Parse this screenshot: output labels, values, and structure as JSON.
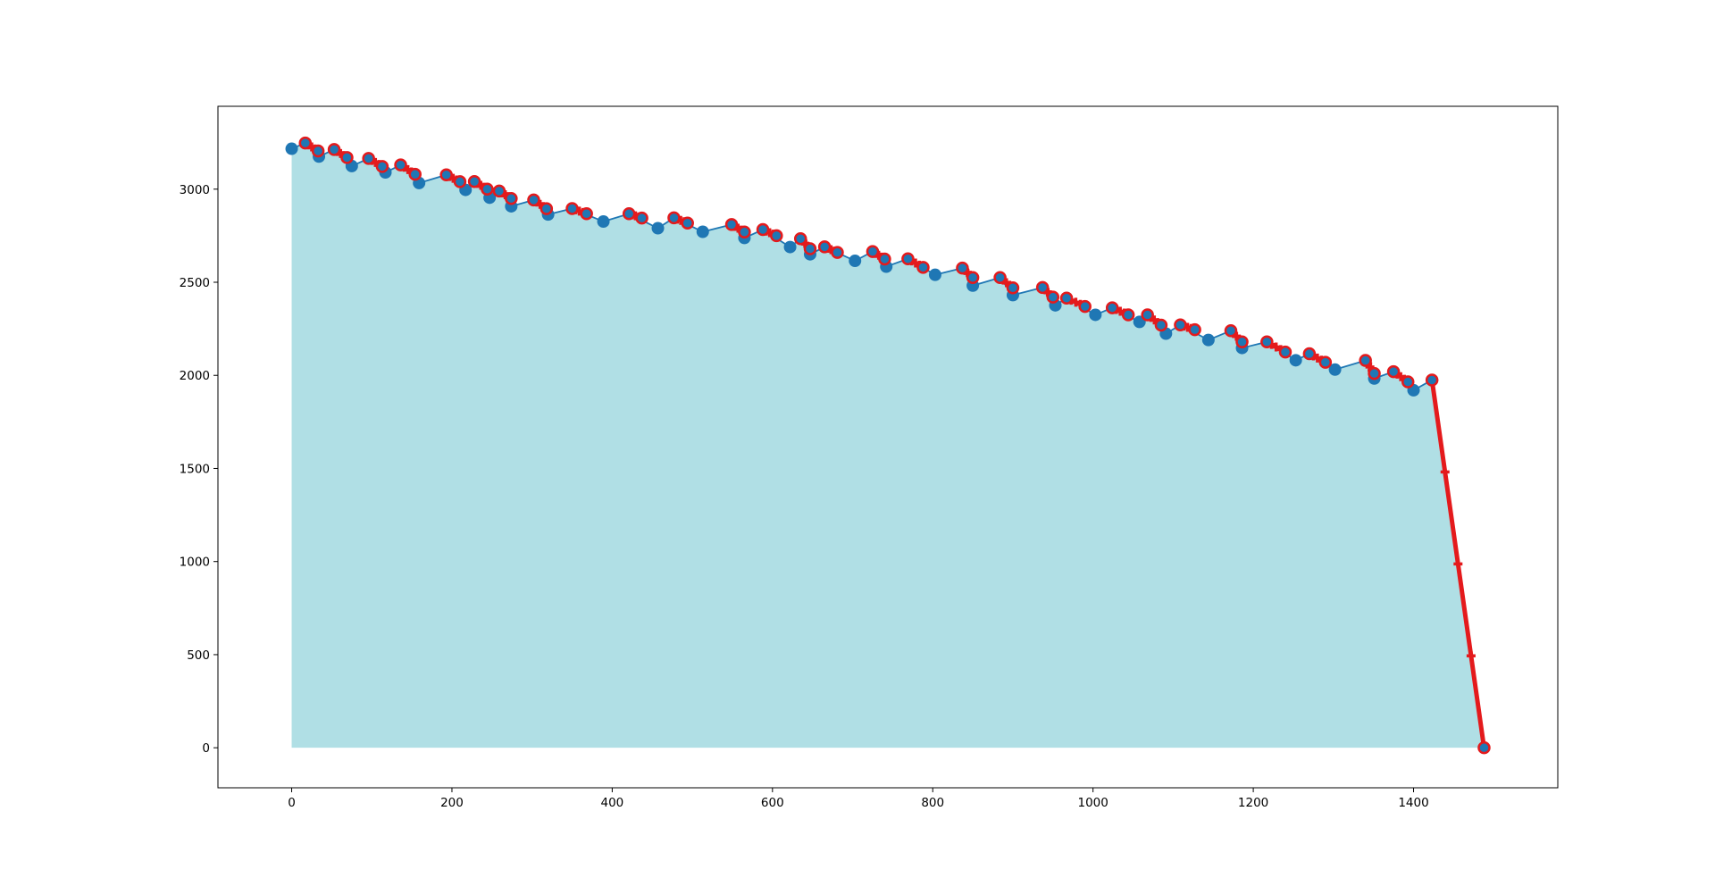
{
  "chart_data": {
    "type": "line",
    "title": "",
    "xlabel": "",
    "ylabel": "",
    "xlim": [
      -92,
      1580
    ],
    "ylim": [
      -215,
      3445
    ],
    "xticks": [
      0,
      200,
      400,
      600,
      800,
      1000,
      1200,
      1400
    ],
    "yticks": [
      0,
      500,
      1000,
      1500,
      2000,
      2500,
      3000
    ],
    "grid": false,
    "legend": "none",
    "fill_color": "#b0dfe5",
    "line_color": "#1f77b4",
    "highlight_color": "#e41a1c",
    "series": [
      {
        "role": "main",
        "style": "line-with-circle-markers",
        "x": [
          0,
          17,
          34,
          53,
          75,
          96,
          117,
          136,
          159,
          193,
          217,
          228,
          247,
          259,
          274,
          302,
          320,
          350,
          389,
          421,
          457,
          477,
          513,
          549,
          565,
          588,
          622,
          635,
          647,
          665,
          703,
          725,
          742,
          769,
          803,
          837,
          850,
          884,
          900,
          937,
          953,
          967,
          1003,
          1024,
          1058,
          1068,
          1091,
          1109,
          1144,
          1172,
          1186,
          1217,
          1253,
          1270,
          1302,
          1340,
          1351,
          1375,
          1400,
          1423,
          1488
        ],
        "y": [
          3217,
          3248,
          3175,
          3213,
          3124,
          3165,
          3090,
          3130,
          3033,
          3077,
          2996,
          3041,
          2954,
          2990,
          2908,
          2942,
          2864,
          2896,
          2826,
          2868,
          2790,
          2846,
          2771,
          2810,
          2738,
          2783,
          2689,
          2734,
          2650,
          2690,
          2615,
          2665,
          2584,
          2626,
          2540,
          2576,
          2482,
          2525,
          2431,
          2472,
          2376,
          2415,
          2325,
          2363,
          2287,
          2325,
          2224,
          2271,
          2190,
          2240,
          2147,
          2180,
          2081,
          2116,
          2031,
          2080,
          1983,
          2020,
          1920,
          1975,
          0
        ]
      },
      {
        "role": "highlight",
        "style": "segments-with-plus-markers",
        "segments": [
          {
            "x": [
              17,
              33
            ],
            "y": [
              3248,
              3205
            ]
          },
          {
            "x": [
              53,
              69
            ],
            "y": [
              3213,
              3170
            ]
          },
          {
            "x": [
              96,
              113
            ],
            "y": [
              3165,
              3122
            ]
          },
          {
            "x": [
              136,
              154
            ],
            "y": [
              3130,
              3080
            ]
          },
          {
            "x": [
              193,
              210
            ],
            "y": [
              3077,
              3040
            ]
          },
          {
            "x": [
              228,
              244
            ],
            "y": [
              3041,
              3000
            ]
          },
          {
            "x": [
              259,
              274
            ],
            "y": [
              2990,
              2950
            ]
          },
          {
            "x": [
              302,
              318
            ],
            "y": [
              2942,
              2895
            ]
          },
          {
            "x": [
              350,
              368
            ],
            "y": [
              2896,
              2868
            ]
          },
          {
            "x": [
              421,
              437
            ],
            "y": [
              2868,
              2845
            ]
          },
          {
            "x": [
              477,
              494
            ],
            "y": [
              2846,
              2818
            ]
          },
          {
            "x": [
              549,
              565
            ],
            "y": [
              2810,
              2770
            ]
          },
          {
            "x": [
              588,
              605
            ],
            "y": [
              2783,
              2750
            ]
          },
          {
            "x": [
              635,
              647
            ],
            "y": [
              2734,
              2680
            ]
          },
          {
            "x": [
              665,
              681
            ],
            "y": [
              2690,
              2660
            ]
          },
          {
            "x": [
              725,
              740
            ],
            "y": [
              2665,
              2625
            ]
          },
          {
            "x": [
              769,
              788
            ],
            "y": [
              2626,
              2580
            ]
          },
          {
            "x": [
              837,
              850
            ],
            "y": [
              2576,
              2525
            ]
          },
          {
            "x": [
              884,
              900
            ],
            "y": [
              2525,
              2470
            ]
          },
          {
            "x": [
              937,
              950
            ],
            "y": [
              2472,
              2420
            ]
          },
          {
            "x": [
              967,
              990
            ],
            "y": [
              2415,
              2370
            ]
          },
          {
            "x": [
              1024,
              1044
            ],
            "y": [
              2363,
              2325
            ]
          },
          {
            "x": [
              1068,
              1085
            ],
            "y": [
              2325,
              2270
            ]
          },
          {
            "x": [
              1109,
              1127
            ],
            "y": [
              2271,
              2245
            ]
          },
          {
            "x": [
              1172,
              1186
            ],
            "y": [
              2240,
              2180
            ]
          },
          {
            "x": [
              1217,
              1240
            ],
            "y": [
              2180,
              2125
            ]
          },
          {
            "x": [
              1270,
              1290
            ],
            "y": [
              2116,
              2070
            ]
          },
          {
            "x": [
              1340,
              1351
            ],
            "y": [
              2080,
              2010
            ]
          },
          {
            "x": [
              1375,
              1393
            ],
            "y": [
              2020,
              1965
            ]
          },
          {
            "x": [
              1423,
              1488
            ],
            "y": [
              1975,
              0
            ]
          }
        ]
      }
    ]
  }
}
